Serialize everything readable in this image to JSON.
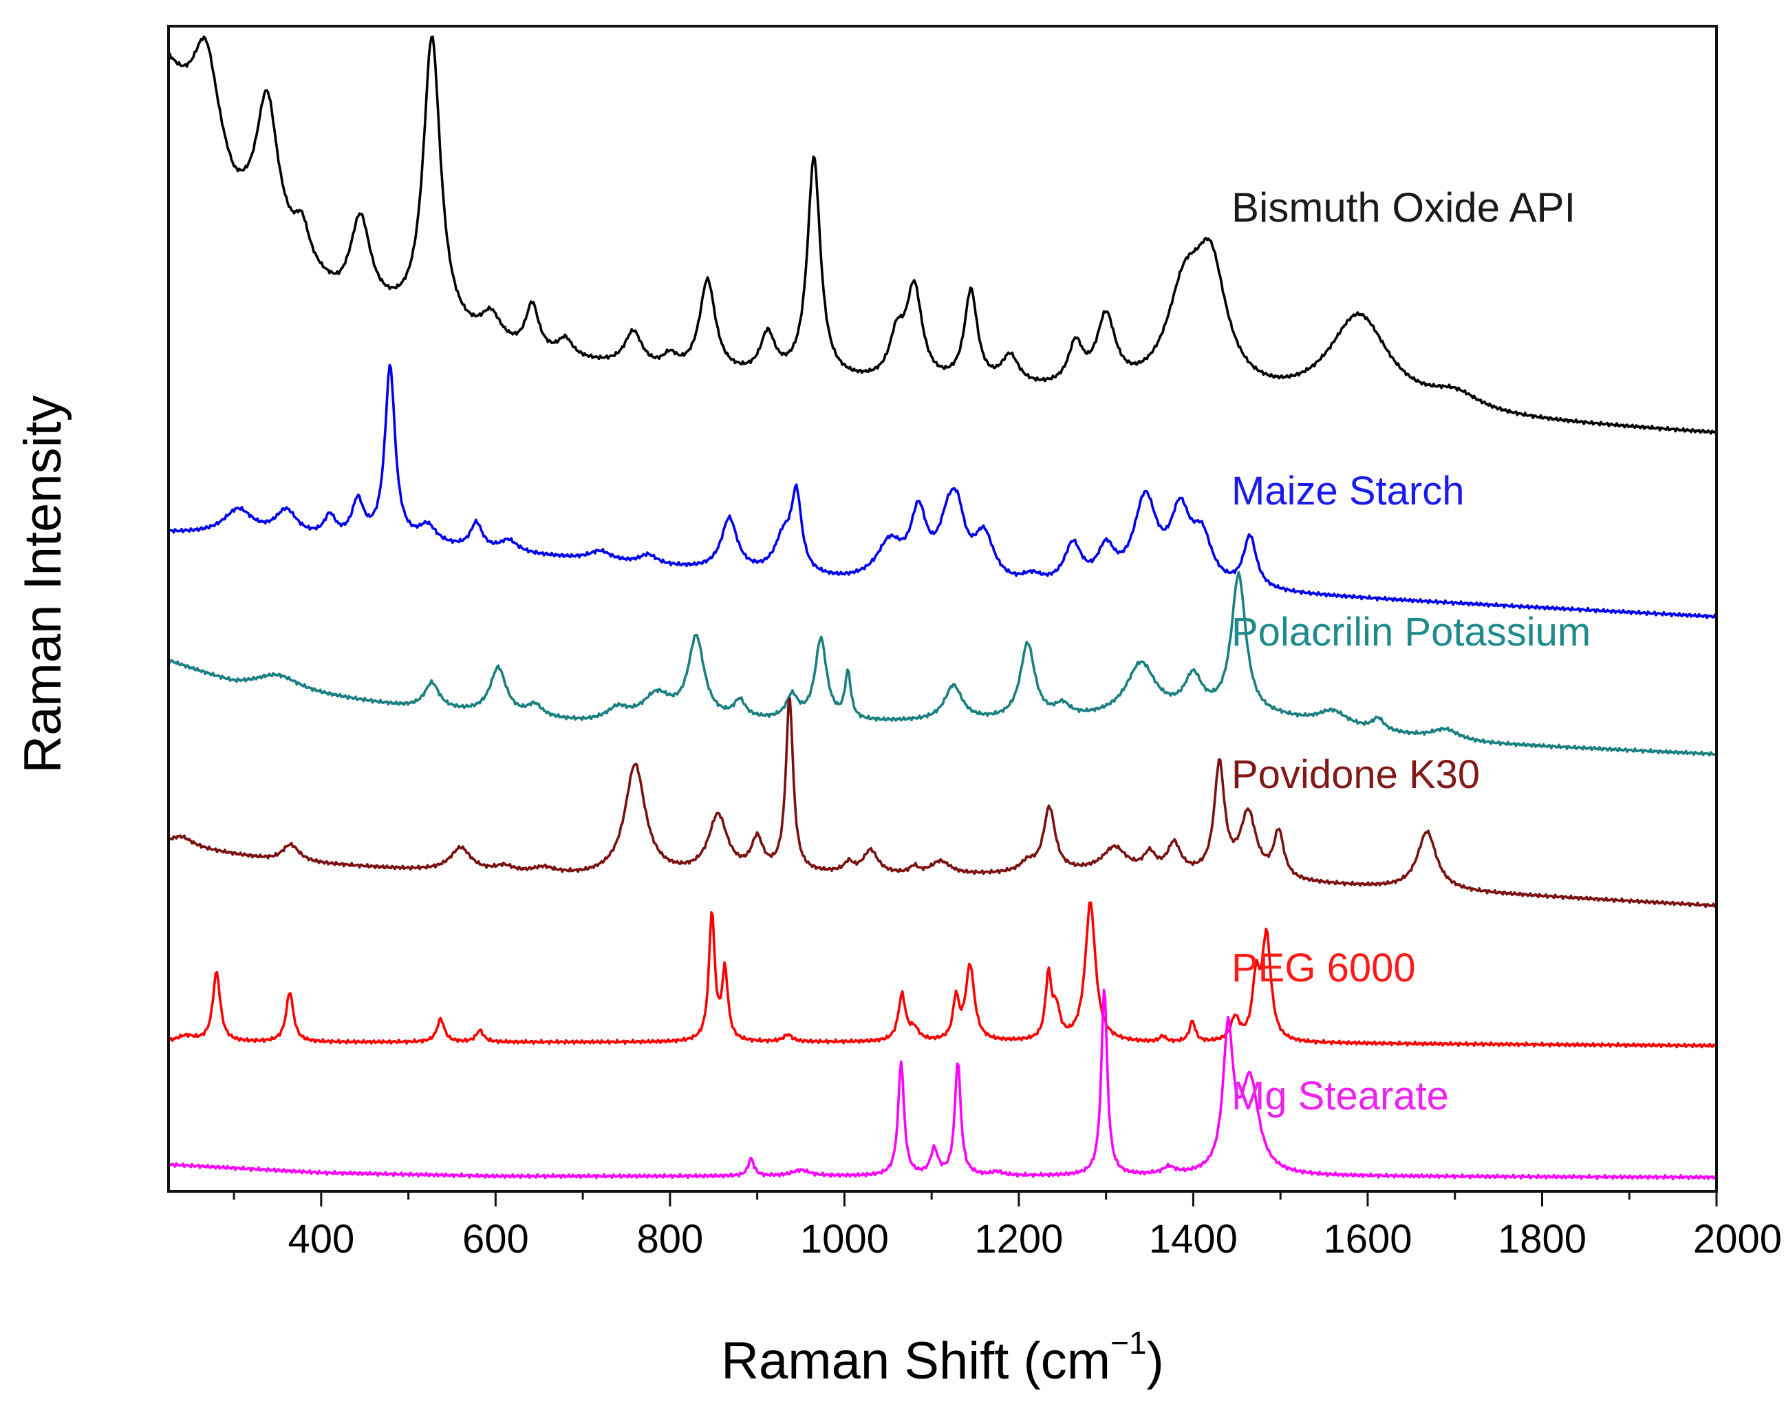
{
  "chart_data": {
    "type": "line",
    "title": "",
    "xlabel": "Raman Shift (cm",
    "xlabel_sup": "−1",
    "xlabel_close": ")",
    "ylabel": "Raman Intensity",
    "xlim": [
      225,
      2000
    ],
    "ylim": [
      0,
      100
    ],
    "x_ticks": [
      400,
      600,
      800,
      1000,
      1200,
      1400,
      1600,
      1800,
      2000
    ],
    "x_tick_labels": [
      "400",
      "600",
      "800",
      "1000",
      "1200",
      "1400",
      "1600",
      "1800",
      "2000"
    ],
    "grid": false,
    "y_ticks_shown": false,
    "series": [
      {
        "name": "Bismuth Oxide API",
        "color": "#000000",
        "label_color": "#1a1a1a",
        "baseline": [
          [
            225,
            96
          ],
          [
            300,
            84
          ],
          [
            420,
            76
          ],
          [
            600,
            72
          ],
          [
            800,
            70
          ],
          [
            1000,
            69.2
          ],
          [
            1200,
            68.5
          ],
          [
            1450,
            67.5
          ],
          [
            1700,
            66.3
          ],
          [
            2000,
            65
          ]
        ],
        "peaks": [
          [
            268,
            9,
            18
          ],
          [
            338,
            12,
            15
          ],
          [
            378,
            3,
            10
          ],
          [
            445,
            7.5,
            14
          ],
          [
            527,
            25,
            12
          ],
          [
            595,
            2.5,
            14
          ],
          [
            642,
            4,
            9
          ],
          [
            680,
            1.5,
            10
          ],
          [
            758,
            3,
            12
          ],
          [
            800,
            1.2,
            10
          ],
          [
            843,
            8,
            11
          ],
          [
            912,
            3.5,
            10
          ],
          [
            965,
            19,
            9
          ],
          [
            1060,
            3.5,
            10
          ],
          [
            1080,
            8,
            11
          ],
          [
            1145,
            8,
            9
          ],
          [
            1190,
            2.5,
            12
          ],
          [
            1265,
            3.5,
            10
          ],
          [
            1300,
            6,
            13
          ],
          [
            1390,
            8,
            25
          ],
          [
            1420,
            10,
            22
          ],
          [
            1590,
            8,
            42
          ],
          [
            1700,
            1.5,
            35
          ]
        ]
      },
      {
        "name": "Maize Starch",
        "color": "#0000ee",
        "label_color": "#1a1aee",
        "baseline": [
          [
            225,
            56.5
          ],
          [
            500,
            55.5
          ],
          [
            800,
            53.5
          ],
          [
            1000,
            52.2
          ],
          [
            1200,
            51.5
          ],
          [
            1500,
            51.2
          ],
          [
            2000,
            49.3
          ]
        ],
        "peaks": [
          [
            305,
            2.2,
            20
          ],
          [
            360,
            2.2,
            15
          ],
          [
            410,
            1.8,
            8
          ],
          [
            442,
            3.2,
            8
          ],
          [
            479,
            15,
            7
          ],
          [
            522,
            1.5,
            12
          ],
          [
            578,
            2.2,
            8
          ],
          [
            615,
            1,
            12
          ],
          [
            720,
            0.8,
            15
          ],
          [
            775,
            0.8,
            12
          ],
          [
            868,
            4.5,
            11
          ],
          [
            930,
            3,
            12
          ],
          [
            945,
            6.5,
            7
          ],
          [
            1052,
            3.2,
            18
          ],
          [
            1085,
            5.5,
            11
          ],
          [
            1120,
            5,
            14
          ],
          [
            1130,
            3.5,
            10
          ],
          [
            1160,
            4,
            14
          ],
          [
            1215,
            0.8,
            15
          ],
          [
            1262,
            3.5,
            12
          ],
          [
            1300,
            3,
            12
          ],
          [
            1345,
            7.5,
            16
          ],
          [
            1385,
            6,
            14
          ],
          [
            1410,
            4,
            14
          ],
          [
            1465,
            4.5,
            9
          ]
        ]
      },
      {
        "name": "Polacrilin Potassium",
        "color": "#1a7f7f",
        "label_color": "#1f8a8a",
        "baseline": [
          [
            225,
            45.5
          ],
          [
            300,
            43.5
          ],
          [
            500,
            41.5
          ],
          [
            700,
            40.2
          ],
          [
            900,
            40.3
          ],
          [
            1000,
            40.2
          ],
          [
            1200,
            40.3
          ],
          [
            1400,
            40.8
          ],
          [
            1500,
            40.5
          ],
          [
            1700,
            38.5
          ],
          [
            2000,
            37.5
          ]
        ],
        "peaks": [
          [
            350,
            1.3,
            30
          ],
          [
            527,
            2.2,
            10
          ],
          [
            603,
            4,
            11
          ],
          [
            645,
            1,
            10
          ],
          [
            740,
            1,
            14
          ],
          [
            785,
            2.2,
            20
          ],
          [
            830,
            7,
            11
          ],
          [
            880,
            1.5,
            8
          ],
          [
            940,
            2,
            8
          ],
          [
            973,
            7,
            8
          ],
          [
            1004,
            4,
            4
          ],
          [
            1125,
            3,
            12
          ],
          [
            1210,
            6.5,
            10
          ],
          [
            1250,
            1,
            10
          ],
          [
            1340,
            4.5,
            20
          ],
          [
            1400,
            3,
            12
          ],
          [
            1452,
            12,
            10
          ],
          [
            1560,
            1.2,
            20
          ],
          [
            1612,
            1,
            8
          ],
          [
            1690,
            1,
            20
          ]
        ]
      },
      {
        "name": "Povidone K30",
        "color": "#7a1010",
        "label_color": "#801818",
        "baseline": [
          [
            225,
            29.8
          ],
          [
            350,
            28.3
          ],
          [
            500,
            27.6
          ],
          [
            700,
            27.0
          ],
          [
            900,
            27.1
          ],
          [
            1000,
            27.2
          ],
          [
            1100,
            27.0
          ],
          [
            1300,
            27.4
          ],
          [
            1400,
            27.0
          ],
          [
            1500,
            26.5
          ],
          [
            2000,
            24.5
          ]
        ],
        "peaks": [
          [
            240,
            0.8,
            15
          ],
          [
            365,
            1.5,
            12
          ],
          [
            560,
            2,
            14
          ],
          [
            610,
            0.5,
            12
          ],
          [
            655,
            0.5,
            15
          ],
          [
            760,
            9.5,
            14
          ],
          [
            855,
            5,
            13
          ],
          [
            900,
            2.8,
            8
          ],
          [
            937,
            15,
            5
          ],
          [
            1005,
            0.8,
            6
          ],
          [
            1030,
            2,
            10
          ],
          [
            1080,
            0.6,
            6
          ],
          [
            1110,
            1.2,
            14
          ],
          [
            1210,
            0.8,
            10
          ],
          [
            1235,
            5.5,
            8
          ],
          [
            1310,
            2,
            16
          ],
          [
            1350,
            1.5,
            8
          ],
          [
            1378,
            2.5,
            9
          ],
          [
            1430,
            9.5,
            7
          ],
          [
            1463,
            5.5,
            11
          ],
          [
            1498,
            4,
            7
          ],
          [
            1668,
            5,
            13
          ]
        ]
      },
      {
        "name": "PEG 6000",
        "color": "#ff0000",
        "label_color": "#ff1a1a",
        "baseline": [
          [
            225,
            12.8
          ],
          [
            500,
            12.8
          ],
          [
            900,
            12.8
          ],
          [
            1200,
            12.8
          ],
          [
            1400,
            12.7
          ],
          [
            1550,
            12.7
          ],
          [
            2000,
            12.5
          ]
        ],
        "peaks": [
          [
            245,
            0.5,
            12
          ],
          [
            280,
            6,
            5
          ],
          [
            364,
            4.3,
            5
          ],
          [
            537,
            2,
            5
          ],
          [
            582,
            1,
            5
          ],
          [
            848,
            11,
            4
          ],
          [
            863,
            6,
            4
          ],
          [
            935,
            0.6,
            6
          ],
          [
            1066,
            4,
            5
          ],
          [
            1080,
            1,
            6
          ],
          [
            1128,
            3.5,
            4
          ],
          [
            1144,
            6.5,
            6
          ],
          [
            1234,
            5.5,
            4
          ],
          [
            1243,
            2.5,
            5
          ],
          [
            1282,
            12,
            7
          ],
          [
            1365,
            0.5,
            4
          ],
          [
            1399,
            1.8,
            4
          ],
          [
            1448,
            2,
            6
          ],
          [
            1472,
            5,
            5
          ],
          [
            1484,
            9,
            6
          ]
        ]
      },
      {
        "name": "Mg Stearate",
        "color": "#ff00ff",
        "label_color": "#ee22ee",
        "baseline": [
          [
            225,
            2.3
          ],
          [
            400,
            1.6
          ],
          [
            600,
            1.3
          ],
          [
            1000,
            1.3
          ],
          [
            1500,
            1.3
          ],
          [
            2000,
            1.2
          ]
        ],
        "peaks": [
          [
            893,
            1.5,
            4
          ],
          [
            950,
            0.5,
            12
          ],
          [
            1065,
            9.8,
            4
          ],
          [
            1103,
            2.2,
            5
          ],
          [
            1130,
            9.8,
            4
          ],
          [
            1175,
            0.3,
            8
          ],
          [
            1298,
            16.2,
            4
          ],
          [
            1372,
            0.6,
            8
          ],
          [
            1440,
            12,
            7
          ],
          [
            1465,
            8,
            12
          ]
        ]
      }
    ]
  }
}
